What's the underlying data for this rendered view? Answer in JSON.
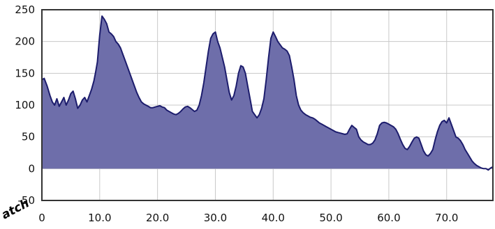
{
  "chart_data": {
    "type": "area",
    "title": "",
    "xlabel": "",
    "ylabel": "",
    "xlim": [
      0,
      78
    ],
    "ylim": [
      -50,
      250
    ],
    "grid": true,
    "legend": "none",
    "x_ticks": [
      "0",
      "10.0",
      "20.0",
      "30.0",
      "40.0",
      "50.0",
      "60.0",
      "70.0"
    ],
    "y_ticks": [
      "250",
      "200",
      "150",
      "100",
      "50",
      "0",
      "-50"
    ],
    "corner_text": "atch",
    "colors": {
      "fill": "#6E6EAA",
      "line": "#1C1C6C",
      "grid": "#C8C8C8",
      "frame": "#333333"
    },
    "series": [
      {
        "x": [
          0,
          0.4,
          0.9,
          1.4,
          1.8,
          2.2,
          2.6,
          3.0,
          3.4,
          3.8,
          4.2,
          4.6,
          5.0,
          5.4,
          5.8,
          6.2,
          6.6,
          7.0,
          7.4,
          7.8,
          8.2,
          8.6,
          9.0,
          9.3,
          9.6,
          9.8,
          10.0,
          10.4,
          10.8,
          11.2,
          11.6,
          12.0,
          12.4,
          12.8,
          13.2,
          13.6,
          14.0,
          14.4,
          14.8,
          15.2,
          15.6,
          16.0,
          16.4,
          16.8,
          17.2,
          17.6,
          18.0,
          18.4,
          18.8,
          19.2,
          19.6,
          20.0,
          20.4,
          20.8,
          21.2,
          21.6,
          22.0,
          22.4,
          22.8,
          23.2,
          23.6,
          24.0,
          24.4,
          24.8,
          25.2,
          25.6,
          26.0,
          26.4,
          26.8,
          27.2,
          27.6,
          28.0,
          28.4,
          28.8,
          29.2,
          29.6,
          30.0,
          30.4,
          30.8,
          31.2,
          31.6,
          32.0,
          32.4,
          32.8,
          33.2,
          33.6,
          34.0,
          34.4,
          34.8,
          35.2,
          35.6,
          36.0,
          36.4,
          36.8,
          37.2,
          37.6,
          38.0,
          38.4,
          38.8,
          39.2,
          39.6,
          40.0,
          40.4,
          40.8,
          41.2,
          41.6,
          42.0,
          42.4,
          42.8,
          43.2,
          43.6,
          44.0,
          44.4,
          44.8,
          45.2,
          45.6,
          46.0,
          46.4,
          46.8,
          47.2,
          47.6,
          48.0,
          48.4,
          48.8,
          49.2,
          49.6,
          50.0,
          50.4,
          50.8,
          51.2,
          51.6,
          52.0,
          52.4,
          52.8,
          53.2,
          53.6,
          54.0,
          54.4,
          54.8,
          55.2,
          55.6,
          56.0,
          56.4,
          56.8,
          57.2,
          57.6,
          58.0,
          58.4,
          58.8,
          59.2,
          59.6,
          60.0,
          60.4,
          60.8,
          61.2,
          61.6,
          62.0,
          62.4,
          62.8,
          63.2,
          63.6,
          64.0,
          64.4,
          64.8,
          65.2,
          65.6,
          66.0,
          66.4,
          66.8,
          67.2,
          67.6,
          68.0,
          68.4,
          68.8,
          69.2,
          69.6,
          70.0,
          70.4,
          70.8,
          71.2,
          71.6,
          72.0,
          72.4,
          72.8,
          73.2,
          73.6,
          74.0,
          74.4,
          74.8,
          75.2,
          75.6,
          76.0,
          76.4,
          76.8,
          77.2,
          77.6,
          78.0
        ],
        "values": [
          140,
          142,
          130,
          115,
          105,
          100,
          110,
          98,
          105,
          112,
          100,
          108,
          118,
          122,
          110,
          95,
          100,
          108,
          112,
          105,
          115,
          125,
          138,
          152,
          168,
          190,
          210,
          240,
          235,
          228,
          215,
          212,
          208,
          200,
          196,
          190,
          180,
          170,
          160,
          150,
          140,
          130,
          120,
          112,
          105,
          102,
          100,
          98,
          96,
          96,
          97,
          98,
          99,
          97,
          96,
          92,
          90,
          88,
          86,
          85,
          87,
          90,
          94,
          97,
          98,
          96,
          93,
          90,
          92,
          100,
          115,
          135,
          160,
          185,
          205,
          212,
          215,
          200,
          190,
          175,
          160,
          140,
          120,
          108,
          115,
          130,
          150,
          162,
          160,
          150,
          130,
          110,
          90,
          85,
          80,
          85,
          95,
          110,
          140,
          175,
          205,
          215,
          208,
          200,
          195,
          190,
          188,
          185,
          178,
          160,
          140,
          115,
          100,
          92,
          88,
          85,
          83,
          81,
          80,
          78,
          75,
          72,
          70,
          68,
          66,
          64,
          62,
          60,
          58,
          57,
          56,
          55,
          54,
          55,
          62,
          68,
          65,
          62,
          50,
          45,
          42,
          40,
          38,
          38,
          40,
          45,
          55,
          68,
          72,
          73,
          72,
          70,
          68,
          66,
          62,
          55,
          46,
          38,
          32,
          30,
          35,
          42,
          48,
          50,
          48,
          38,
          28,
          22,
          20,
          24,
          30,
          45,
          58,
          68,
          74,
          76,
          72,
          80,
          70,
          60,
          50,
          48,
          44,
          38,
          30,
          24,
          18,
          12,
          8,
          5,
          3,
          1,
          0,
          0,
          -2,
          1,
          3
        ]
      }
    ]
  }
}
